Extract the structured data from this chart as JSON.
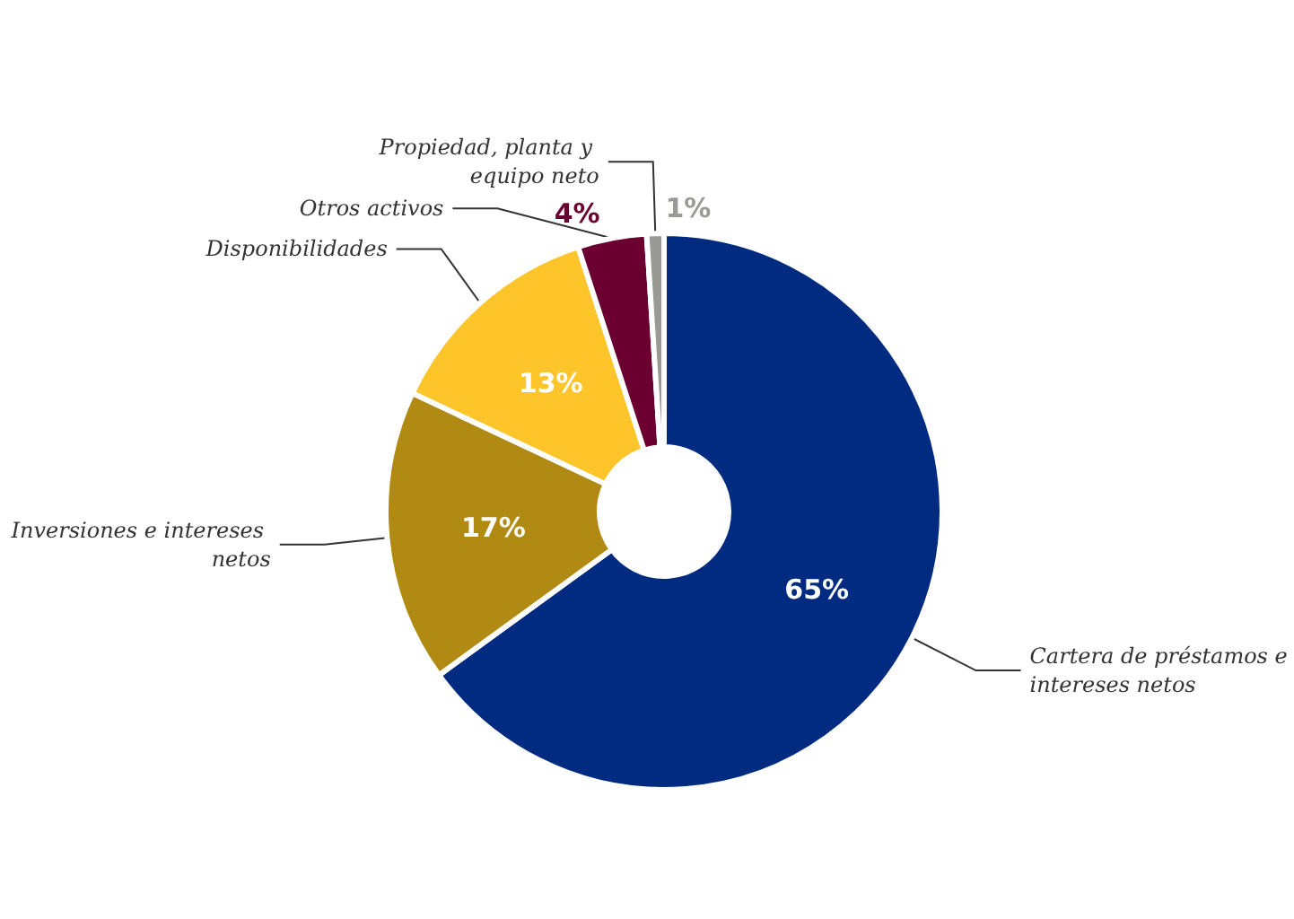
{
  "chart_data": {
    "type": "donut",
    "categories": [
      "Cartera de préstamos e intereses netos",
      "Inversiones e intereses netos",
      "Disponibilidades",
      "Otros activos",
      "Propiedad, planta y equipo neto"
    ],
    "values": [
      65,
      17,
      13,
      4,
      1
    ],
    "value_labels": [
      "65%",
      "17%",
      "13%",
      "4%",
      "1%"
    ],
    "colors": [
      "#002b80",
      "#b08a12",
      "#fdc52a",
      "#6b0030",
      "#999a93"
    ],
    "legend": false
  }
}
